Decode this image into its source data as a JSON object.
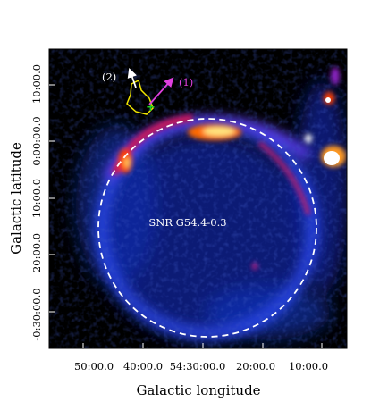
{
  "figure": {
    "object_label": "SNR G54.4-0.3",
    "arrow_labels": [
      "(2)",
      "(1)"
    ],
    "xlabel": "Galactic longitude",
    "ylabel": "Galactic latitude",
    "x_ticks": [
      "50:00.0",
      "40:00.0",
      "54:30:00.0",
      "20:00.0",
      "10:00.0"
    ],
    "y_ticks": [
      "10:00.0",
      "0:00:00.0",
      "10:00.0",
      "20:00.0",
      "-0:30:00.0"
    ],
    "colors": {
      "background": "#000000",
      "circle": "#ffffff",
      "arrow_1": "#e040e0",
      "arrow_2": "#ffffff",
      "contour": "#f2e600",
      "marker": "#22cc22"
    }
  }
}
